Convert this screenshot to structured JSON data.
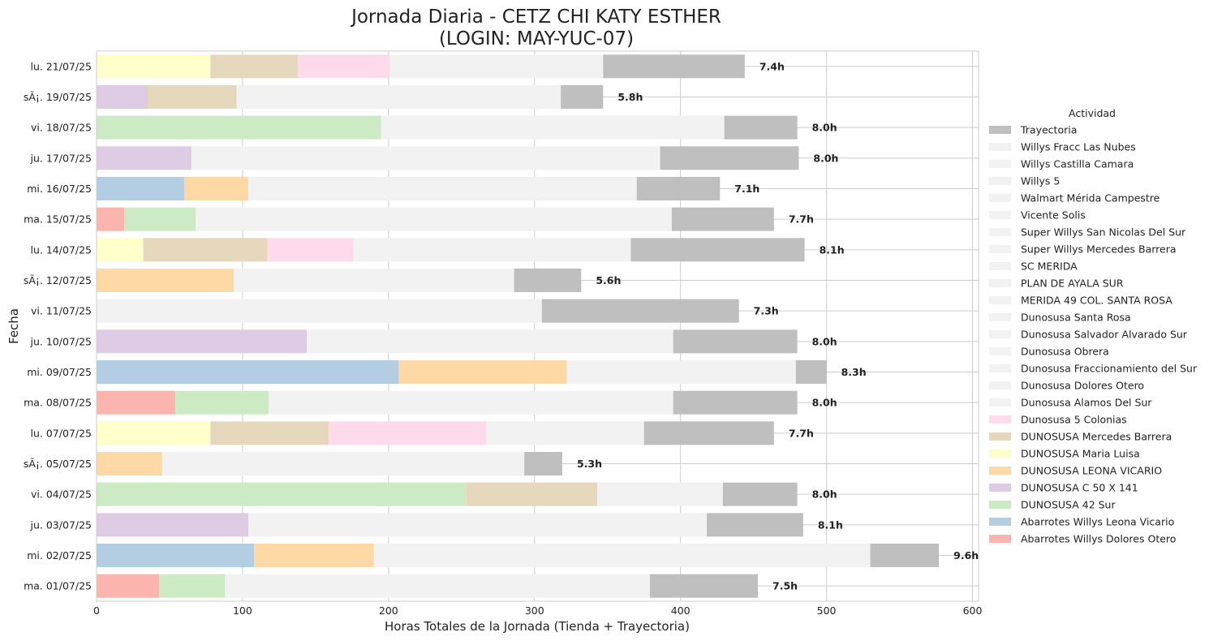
{
  "chart_data": {
    "type": "bar",
    "orientation": "horizontal",
    "stacked": true,
    "title": "Jornada Diaria - CETZ CHI KATY ESTHER",
    "subtitle": "(LOGIN: MAY-YUC-07)",
    "xlabel": "Horas Totales de la Jornada (Tienda + Trayectoria)",
    "ylabel": "Fecha",
    "xlim": [
      0,
      605
    ],
    "xticks": [
      0,
      100,
      200,
      300,
      400,
      500,
      600
    ],
    "grid": true,
    "legend": {
      "title": "Actividad",
      "placement": "right",
      "entries": [
        "Trayectoria",
        "Willys Fracc Las Nubes",
        "Willys Castilla Camara",
        "Willys 5",
        "Walmart Mérida Campestre",
        "Vicente Solis",
        "Super Willys San Nicolas Del Sur",
        "Super Willys Mercedes Barrera",
        "SC MERIDA",
        "PLAN DE AYALA SUR",
        "MERIDA 49 COL. SANTA ROSA",
        "Dunosusa Santa Rosa",
        "Dunosusa Salvador Alvarado Sur",
        "Dunosusa Obrera",
        "Dunosusa Fraccionamiento del Sur",
        "Dunosusa Dolores Otero",
        "Dunosusa Alamos Del Sur",
        "Dunosusa 5 Colonias",
        "DUNOSUSA Mercedes Barrera",
        "DUNOSUSA Maria Luisa",
        "DUNOSUSA LEONA VICARIO",
        "DUNOSUSA C 50 X 141",
        "DUNOSUSA 42 Sur",
        "Abarrotes Willys Leona Vicario",
        "Abarrotes Willys Dolores Otero"
      ]
    },
    "colors": {
      "Trayectoria": "#bfbfbf",
      "Otras tiendas": "#f2f2f2",
      "Dunosusa 5 Colonias": "#fddaec",
      "DUNOSUSA Mercedes Barrera": "#e5d8bd",
      "DUNOSUSA Maria Luisa": "#ffffcc",
      "DUNOSUSA LEONA VICARIO": "#fed9a6",
      "DUNOSUSA C 50 X 141": "#decbe4",
      "DUNOSUSA 42 Sur": "#ccebc5",
      "Abarrotes Willys Leona Vicario": "#b3cde3",
      "Abarrotes Willys Dolores Otero": "#fbb4ae"
    },
    "rows": [
      {
        "date": "lu. 21/07/25",
        "total_label": "7.4h",
        "segments": [
          {
            "activity": "DUNOSUSA Maria Luisa",
            "value": 78
          },
          {
            "activity": "DUNOSUSA Mercedes Barrera",
            "value": 60
          },
          {
            "activity": "Dunosusa 5 Colonias",
            "value": 63
          },
          {
            "activity": "Otras tiendas",
            "value": 146
          },
          {
            "activity": "Trayectoria",
            "value": 97
          }
        ]
      },
      {
        "date": "sÃ¡. 19/07/25",
        "total_label": "5.8h",
        "segments": [
          {
            "activity": "DUNOSUSA C 50 X 141",
            "value": 35
          },
          {
            "activity": "DUNOSUSA Mercedes Barrera",
            "value": 61
          },
          {
            "activity": "Otras tiendas",
            "value": 222
          },
          {
            "activity": "Trayectoria",
            "value": 29
          }
        ]
      },
      {
        "date": "vi. 18/07/25",
        "total_label": "8.0h",
        "segments": [
          {
            "activity": "DUNOSUSA 42 Sur",
            "value": 195
          },
          {
            "activity": "Otras tiendas",
            "value": 235
          },
          {
            "activity": "Trayectoria",
            "value": 50
          }
        ]
      },
      {
        "date": "ju. 17/07/25",
        "total_label": "8.0h",
        "segments": [
          {
            "activity": "DUNOSUSA C 50 X 141",
            "value": 65
          },
          {
            "activity": "Otras tiendas",
            "value": 321
          },
          {
            "activity": "Trayectoria",
            "value": 95
          }
        ]
      },
      {
        "date": "mi. 16/07/25",
        "total_label": "7.1h",
        "segments": [
          {
            "activity": "Abarrotes Willys Leona Vicario",
            "value": 60
          },
          {
            "activity": "DUNOSUSA LEONA VICARIO",
            "value": 44
          },
          {
            "activity": "Otras tiendas",
            "value": 266
          },
          {
            "activity": "Trayectoria",
            "value": 57
          }
        ]
      },
      {
        "date": "ma. 15/07/25",
        "total_label": "7.7h",
        "segments": [
          {
            "activity": "Abarrotes Willys Dolores Otero",
            "value": 19
          },
          {
            "activity": "DUNOSUSA 42 Sur",
            "value": 49
          },
          {
            "activity": "Otras tiendas",
            "value": 326
          },
          {
            "activity": "Trayectoria",
            "value": 70
          }
        ]
      },
      {
        "date": "lu. 14/07/25",
        "total_label": "8.1h",
        "segments": [
          {
            "activity": "DUNOSUSA Maria Luisa",
            "value": 32
          },
          {
            "activity": "DUNOSUSA Mercedes Barrera",
            "value": 85
          },
          {
            "activity": "Dunosusa 5 Colonias",
            "value": 59
          },
          {
            "activity": "Otras tiendas",
            "value": 190
          },
          {
            "activity": "Trayectoria",
            "value": 119
          }
        ]
      },
      {
        "date": "sÃ¡. 12/07/25",
        "total_label": "5.6h",
        "segments": [
          {
            "activity": "DUNOSUSA LEONA VICARIO",
            "value": 94
          },
          {
            "activity": "Otras tiendas",
            "value": 192
          },
          {
            "activity": "Trayectoria",
            "value": 46
          }
        ]
      },
      {
        "date": "vi. 11/07/25",
        "total_label": "7.3h",
        "segments": [
          {
            "activity": "Otras tiendas",
            "value": 305
          },
          {
            "activity": "Trayectoria",
            "value": 135
          }
        ]
      },
      {
        "date": "ju. 10/07/25",
        "total_label": "8.0h",
        "segments": [
          {
            "activity": "DUNOSUSA C 50 X 141",
            "value": 144
          },
          {
            "activity": "Otras tiendas",
            "value": 251
          },
          {
            "activity": "Trayectoria",
            "value": 85
          }
        ]
      },
      {
        "date": "mi. 09/07/25",
        "total_label": "8.3h",
        "segments": [
          {
            "activity": "Abarrotes Willys Leona Vicario",
            "value": 207
          },
          {
            "activity": "DUNOSUSA LEONA VICARIO",
            "value": 115
          },
          {
            "activity": "Otras tiendas",
            "value": 157
          },
          {
            "activity": "Trayectoria",
            "value": 21
          }
        ]
      },
      {
        "date": "ma. 08/07/25",
        "total_label": "8.0h",
        "segments": [
          {
            "activity": "Abarrotes Willys Dolores Otero",
            "value": 54
          },
          {
            "activity": "DUNOSUSA 42 Sur",
            "value": 64
          },
          {
            "activity": "Otras tiendas",
            "value": 277
          },
          {
            "activity": "Trayectoria",
            "value": 85
          }
        ]
      },
      {
        "date": "lu. 07/07/25",
        "total_label": "7.7h",
        "segments": [
          {
            "activity": "DUNOSUSA Maria Luisa",
            "value": 78
          },
          {
            "activity": "DUNOSUSA Mercedes Barrera",
            "value": 81
          },
          {
            "activity": "Dunosusa 5 Colonias",
            "value": 108
          },
          {
            "activity": "Otras tiendas",
            "value": 108
          },
          {
            "activity": "Trayectoria",
            "value": 89
          }
        ]
      },
      {
        "date": "sÃ¡. 05/07/25",
        "total_label": "5.3h",
        "segments": [
          {
            "activity": "DUNOSUSA LEONA VICARIO",
            "value": 45
          },
          {
            "activity": "Otras tiendas",
            "value": 248
          },
          {
            "activity": "Trayectoria",
            "value": 26
          }
        ]
      },
      {
        "date": "vi. 04/07/25",
        "total_label": "8.0h",
        "segments": [
          {
            "activity": "DUNOSUSA 42 Sur",
            "value": 253
          },
          {
            "activity": "DUNOSUSA Mercedes Barrera",
            "value": 90
          },
          {
            "activity": "Otras tiendas",
            "value": 86
          },
          {
            "activity": "Trayectoria",
            "value": 51
          }
        ]
      },
      {
        "date": "ju. 03/07/25",
        "total_label": "8.1h",
        "segments": [
          {
            "activity": "DUNOSUSA C 50 X 141",
            "value": 104
          },
          {
            "activity": "Otras tiendas",
            "value": 314
          },
          {
            "activity": "Trayectoria",
            "value": 66
          }
        ]
      },
      {
        "date": "mi. 02/07/25",
        "total_label": "9.6h",
        "segments": [
          {
            "activity": "Abarrotes Willys Leona Vicario",
            "value": 108
          },
          {
            "activity": "DUNOSUSA LEONA VICARIO",
            "value": 82
          },
          {
            "activity": "Otras tiendas",
            "value": 340
          },
          {
            "activity": "Trayectoria",
            "value": 47
          }
        ]
      },
      {
        "date": "ma. 01/07/25",
        "total_label": "7.5h",
        "segments": [
          {
            "activity": "Abarrotes Willys Dolores Otero",
            "value": 43
          },
          {
            "activity": "DUNOSUSA 42 Sur",
            "value": 45
          },
          {
            "activity": "Otras tiendas",
            "value": 291
          },
          {
            "activity": "Trayectoria",
            "value": 74
          }
        ]
      }
    ]
  }
}
